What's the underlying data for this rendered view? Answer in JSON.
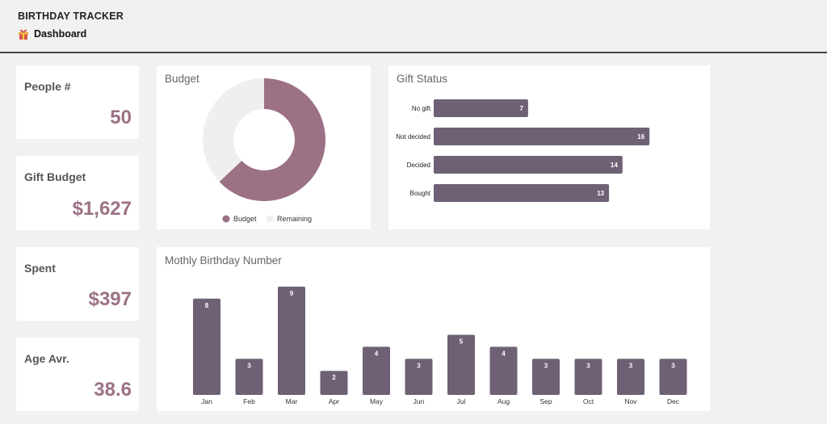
{
  "app": {
    "title": "BIRTHDAY TRACKER",
    "breadcrumb": "Dashboard",
    "breadcrumb_icon": "gift-icon"
  },
  "colors": {
    "accent": "#9c7185",
    "bar": "#6e6175",
    "remaining": "#efefef"
  },
  "kpis": [
    {
      "label": "People #",
      "value": "50"
    },
    {
      "label": "Gift Budget",
      "value": "$1,627"
    },
    {
      "label": "Spent",
      "value": "$397"
    },
    {
      "label": "Age Avr.",
      "value": "38.6"
    }
  ],
  "chart_data": [
    {
      "type": "pie",
      "title": "Budget",
      "categories": [
        "Budget",
        "Remaining"
      ],
      "values": [
        63,
        37
      ],
      "legend": "bottom"
    },
    {
      "type": "bar",
      "orientation": "horizontal",
      "title": "Gift Status",
      "categories": [
        "No gift",
        "Not decided",
        "Decided",
        "Bought"
      ],
      "values": [
        7,
        16,
        14,
        13
      ],
      "xlim": [
        0,
        20
      ]
    },
    {
      "type": "bar",
      "title": "Mothly Birthday Number",
      "categories": [
        "Jan",
        "Feb",
        "Mar",
        "Apr",
        "May",
        "Jun",
        "Jul",
        "Aug",
        "Sep",
        "Oct",
        "Nov",
        "Dec"
      ],
      "values": [
        8,
        3,
        9,
        2,
        4,
        3,
        5,
        4,
        3,
        3,
        3,
        3
      ],
      "ylim": [
        0,
        9
      ]
    }
  ]
}
